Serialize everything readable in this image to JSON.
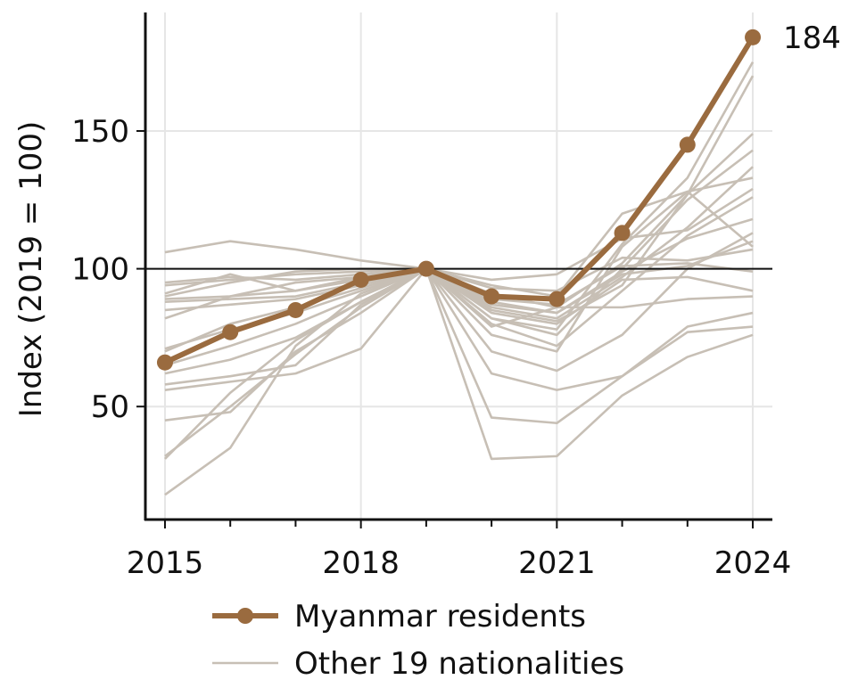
{
  "chart_data": {
    "type": "line",
    "x": [
      2015,
      2016,
      2017,
      2018,
      2019,
      2020,
      2021,
      2022,
      2023,
      2024
    ],
    "xticks": [
      "2015",
      "2018",
      "2021",
      "2024"
    ],
    "xlim": [
      2014.7,
      2024.3
    ],
    "ylabel": "Index (2019 = 100)",
    "yticks": [
      "50",
      "100",
      "150"
    ],
    "ylim": [
      9,
      193
    ],
    "reference_line": 100,
    "highlight": {
      "name": "Myanmar residents",
      "color": "#9a6b3f",
      "values": [
        66,
        77,
        85,
        96,
        100,
        90,
        89,
        113,
        145,
        184
      ],
      "end_label": "184"
    },
    "background_series": {
      "name": "Other 19 nationalities",
      "color": "#c7bfb5",
      "series": [
        [
          106,
          110,
          107,
          103,
          100,
          96,
          98,
          111,
          114,
          129
        ],
        [
          95,
          97,
          96,
          98,
          100,
          93,
          92,
          104,
          103,
          107
        ],
        [
          94,
          96,
          98,
          99,
          100,
          89,
          87,
          101,
          102,
          99
        ],
        [
          91,
          98,
          92,
          97,
          100,
          88,
          84,
          98,
          101,
          110
        ],
        [
          89,
          90,
          92,
          96,
          100,
          86,
          82,
          97,
          115,
          137
        ],
        [
          88,
          89,
          90,
          95,
          100,
          84,
          80,
          96,
          97,
          92
        ],
        [
          85,
          87,
          89,
          94,
          100,
          87,
          84,
          99,
          111,
          118
        ],
        [
          82,
          90,
          95,
          97,
          100,
          85,
          81,
          94,
          127,
          149
        ],
        [
          71,
          78,
          84,
          92,
          100,
          82,
          78,
          109,
          133,
          175
        ],
        [
          70,
          80,
          86,
          93,
          100,
          91,
          86,
          102,
          127,
          170
        ],
        [
          65,
          72,
          80,
          90,
          100,
          82,
          76,
          100,
          125,
          143
        ],
        [
          62,
          67,
          75,
          88,
          100,
          79,
          86,
          86,
          89,
          90
        ],
        [
          58,
          61,
          65,
          87,
          100,
          80,
          72,
          92,
          112,
          126
        ],
        [
          56,
          59,
          62,
          71,
          100,
          76,
          70,
          108,
          128,
          133
        ],
        [
          45,
          48,
          70,
          84,
          100,
          70,
          63,
          76,
          100,
          113
        ],
        [
          32,
          50,
          69,
          86,
          100,
          62,
          56,
          61,
          79,
          84
        ],
        [
          31,
          55,
          74,
          88,
          100,
          46,
          44,
          61,
          77,
          79
        ],
        [
          18,
          35,
          72,
          91,
          100,
          31,
          32,
          54,
          68,
          76
        ],
        [
          90,
          95,
          99,
          100,
          100,
          94,
          90,
          120,
          128,
          108
        ]
      ]
    },
    "grid": true,
    "legend": {
      "placement": "bottom",
      "entries": [
        "Myanmar residents",
        "Other 19 nationalities"
      ]
    }
  }
}
